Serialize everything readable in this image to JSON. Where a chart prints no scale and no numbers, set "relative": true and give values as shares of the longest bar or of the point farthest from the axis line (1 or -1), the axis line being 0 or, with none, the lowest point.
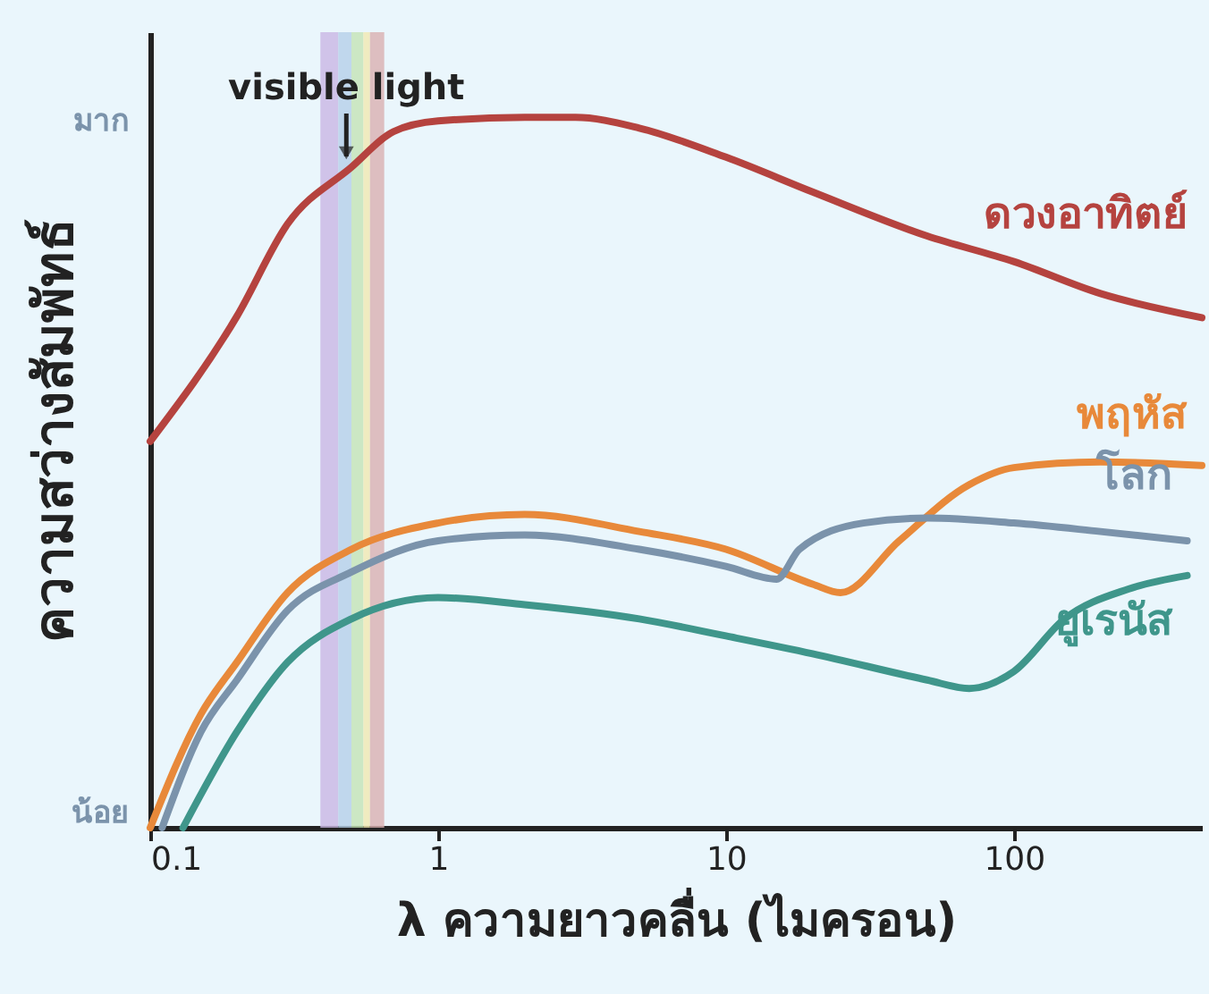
{
  "chart_data": {
    "type": "line",
    "relative": true,
    "xlabel": "λ ความยาวคลื่น (ไมครอน)",
    "ylabel": "ความสว่างสัมพัทธ์",
    "log": "x",
    "xlim": [
      0.1,
      450
    ],
    "xticks": [
      0.1,
      1,
      10,
      100
    ],
    "line_style": "solid",
    "annotations": [
      "มาก",
      "น้อย",
      {
        "text": "visible light",
        "x": 0.48,
        "y": 0.93
      }
    ],
    "bands": [
      {
        "axis": "x",
        "from": 0.39,
        "to": 0.45,
        "color": "#c9b6e4"
      },
      {
        "axis": "x",
        "from": 0.45,
        "to": 0.5,
        "color": "#b5cfe9"
      },
      {
        "axis": "x",
        "from": 0.5,
        "to": 0.55,
        "color": "#c4e3b5"
      },
      {
        "axis": "x",
        "from": 0.55,
        "to": 0.58,
        "color": "#f1e8b0"
      },
      {
        "axis": "x",
        "from": 0.58,
        "to": 0.65,
        "color": "#d9b0b0"
      }
    ],
    "series": [
      {
        "name": "ดวงอาทิตย์",
        "color": "#b5433f",
        "x": [
          0.1,
          0.2,
          0.3,
          0.5,
          0.7,
          1,
          2,
          3,
          5,
          10,
          20,
          50,
          100,
          200,
          450
        ],
        "values": [
          0.544,
          0.72,
          0.85,
          0.93,
          0.98,
          0.995,
          1,
          1,
          0.985,
          0.944,
          0.895,
          0.833,
          0.797,
          0.752,
          0.718
        ]
      },
      {
        "name": "พฤหัส",
        "color": "#e8893a",
        "x": [
          0.1,
          0.15,
          0.2,
          0.3,
          0.5,
          1,
          2,
          5,
          10,
          20,
          25,
          40,
          70,
          100,
          200,
          450
        ],
        "values": [
          0,
          0.16,
          0.233,
          0.331,
          0.392,
          0.429,
          0.441,
          0.417,
          0.392,
          0.343,
          0.331,
          0.404,
          0.483,
          0.507,
          0.515,
          0.51
        ]
      },
      {
        "name": "โลก",
        "color": "#7b93ab",
        "x": [
          0.11,
          0.15,
          0.2,
          0.3,
          0.5,
          1,
          2,
          5,
          10,
          15,
          18,
          30,
          50,
          100,
          200,
          400
        ],
        "values": [
          0,
          0.135,
          0.208,
          0.306,
          0.36,
          0.404,
          0.412,
          0.392,
          0.368,
          0.35,
          0.392,
          0.429,
          0.436,
          0.429,
          0.417,
          0.404
        ]
      },
      {
        "name": "ยูเรนัส",
        "color": "#3f968b",
        "x": [
          0.13,
          0.2,
          0.3,
          0.5,
          1,
          2,
          5,
          10,
          20,
          50,
          70,
          100,
          150,
          250,
          400
        ],
        "values": [
          0,
          0.135,
          0.233,
          0.294,
          0.324,
          0.314,
          0.294,
          0.27,
          0.245,
          0.208,
          0.196,
          0.22,
          0.294,
          0.336,
          0.355
        ]
      }
    ]
  }
}
